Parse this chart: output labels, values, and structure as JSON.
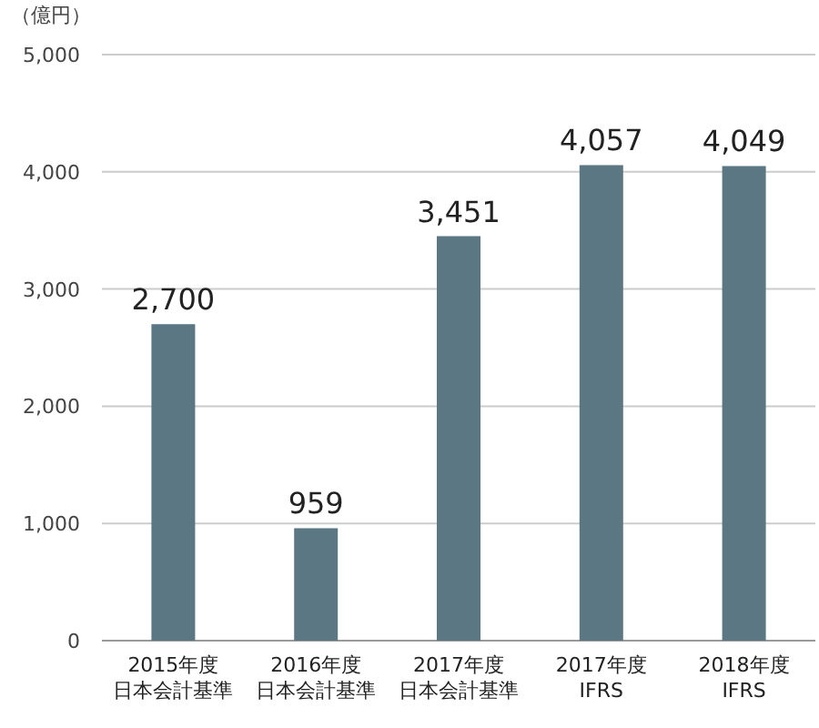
{
  "chart_data": {
    "type": "bar",
    "ylabel": "（億円）",
    "categories": [
      "2015年度日本会計基準",
      "2016年度日本会計基準",
      "2017年度日本会計基準",
      "2017年度\nIFRS",
      "2018年度\nIFRS"
    ],
    "values": [
      2700,
      959,
      3451,
      4057,
      4049
    ],
    "value_labels": [
      "2,700",
      "959",
      "3,451",
      "4,057",
      "4,049"
    ],
    "color": "#5b7783",
    "ylim": [
      0,
      5000
    ],
    "yticks": [
      0,
      {
        "value": 1000,
        "label": "1,000"
      },
      {
        "value": 2000,
        "label": "2,000"
      },
      {
        "value": 3000,
        "label": "3,000"
      },
      {
        "value": 4000,
        "label": "4,000"
      },
      {
        "value": 5000,
        "label": "5,000"
      }
    ],
    "grid": "y"
  }
}
